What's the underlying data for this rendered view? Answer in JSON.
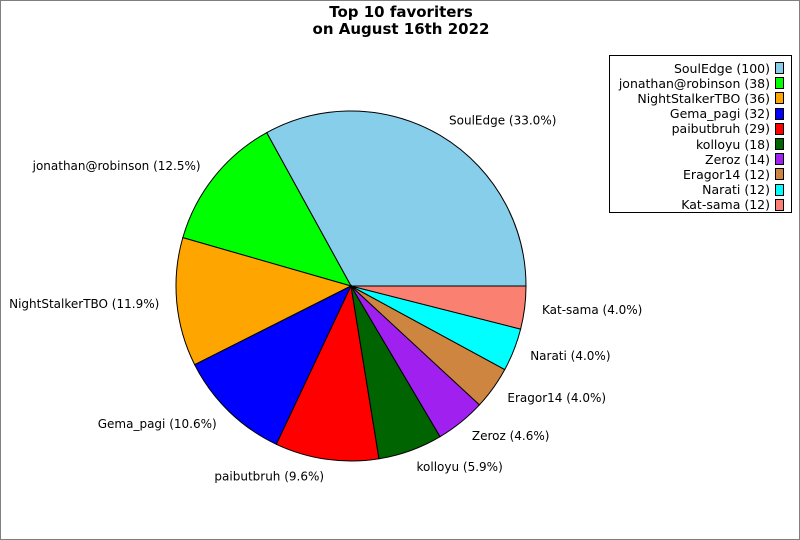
{
  "chart_data": {
    "type": "pie",
    "title_lines": [
      "Top 10 favoriters",
      "on August 16th 2022"
    ],
    "slices": [
      {
        "label": "SoulEdge",
        "value": 100,
        "percent_label": "SoulEdge (33.0%)",
        "legend": "SoulEdge (100)",
        "color": "#87ceeb"
      },
      {
        "label": "jonathan@robinson",
        "value": 38,
        "percent_label": "jonathan@robinson (12.5%)",
        "legend": "jonathan@robinson (38)",
        "color": "#00ff00"
      },
      {
        "label": "NightStalkerTBO",
        "value": 36,
        "percent_label": "NightStalkerTBO (11.9%)",
        "legend": "NightStalkerTBO (36)",
        "color": "#ffa500"
      },
      {
        "label": "Gema_pagi",
        "value": 32,
        "percent_label": "Gema_pagi (10.6%)",
        "legend": "Gema_pagi (32)",
        "color": "#0000ff"
      },
      {
        "label": "paibutbruh",
        "value": 29,
        "percent_label": "paibutbruh (9.6%)",
        "legend": "paibutbruh (29)",
        "color": "#ff0000"
      },
      {
        "label": "kolloyu",
        "value": 18,
        "percent_label": "kolloyu (5.9%)",
        "legend": "kolloyu (18)",
        "color": "#006400"
      },
      {
        "label": "Zeroz",
        "value": 14,
        "percent_label": "Zeroz (4.6%)",
        "legend": "Zeroz (14)",
        "color": "#a020f0"
      },
      {
        "label": "Eragor14",
        "value": 12,
        "percent_label": "Eragor14 (4.0%)",
        "legend": "Eragor14 (12)",
        "color": "#cd853f"
      },
      {
        "label": "Narati",
        "value": 12,
        "percent_label": "Narati (4.0%)",
        "legend": "Narati (12)",
        "color": "#00ffff"
      },
      {
        "label": "Kat-sama",
        "value": 12,
        "percent_label": "Kat-sama (4.0%)",
        "legend": "Kat-sama (12)",
        "color": "#fa8072"
      }
    ],
    "start_direction": "east",
    "rotation": "counterclockwise",
    "legend_position": "top-right"
  }
}
